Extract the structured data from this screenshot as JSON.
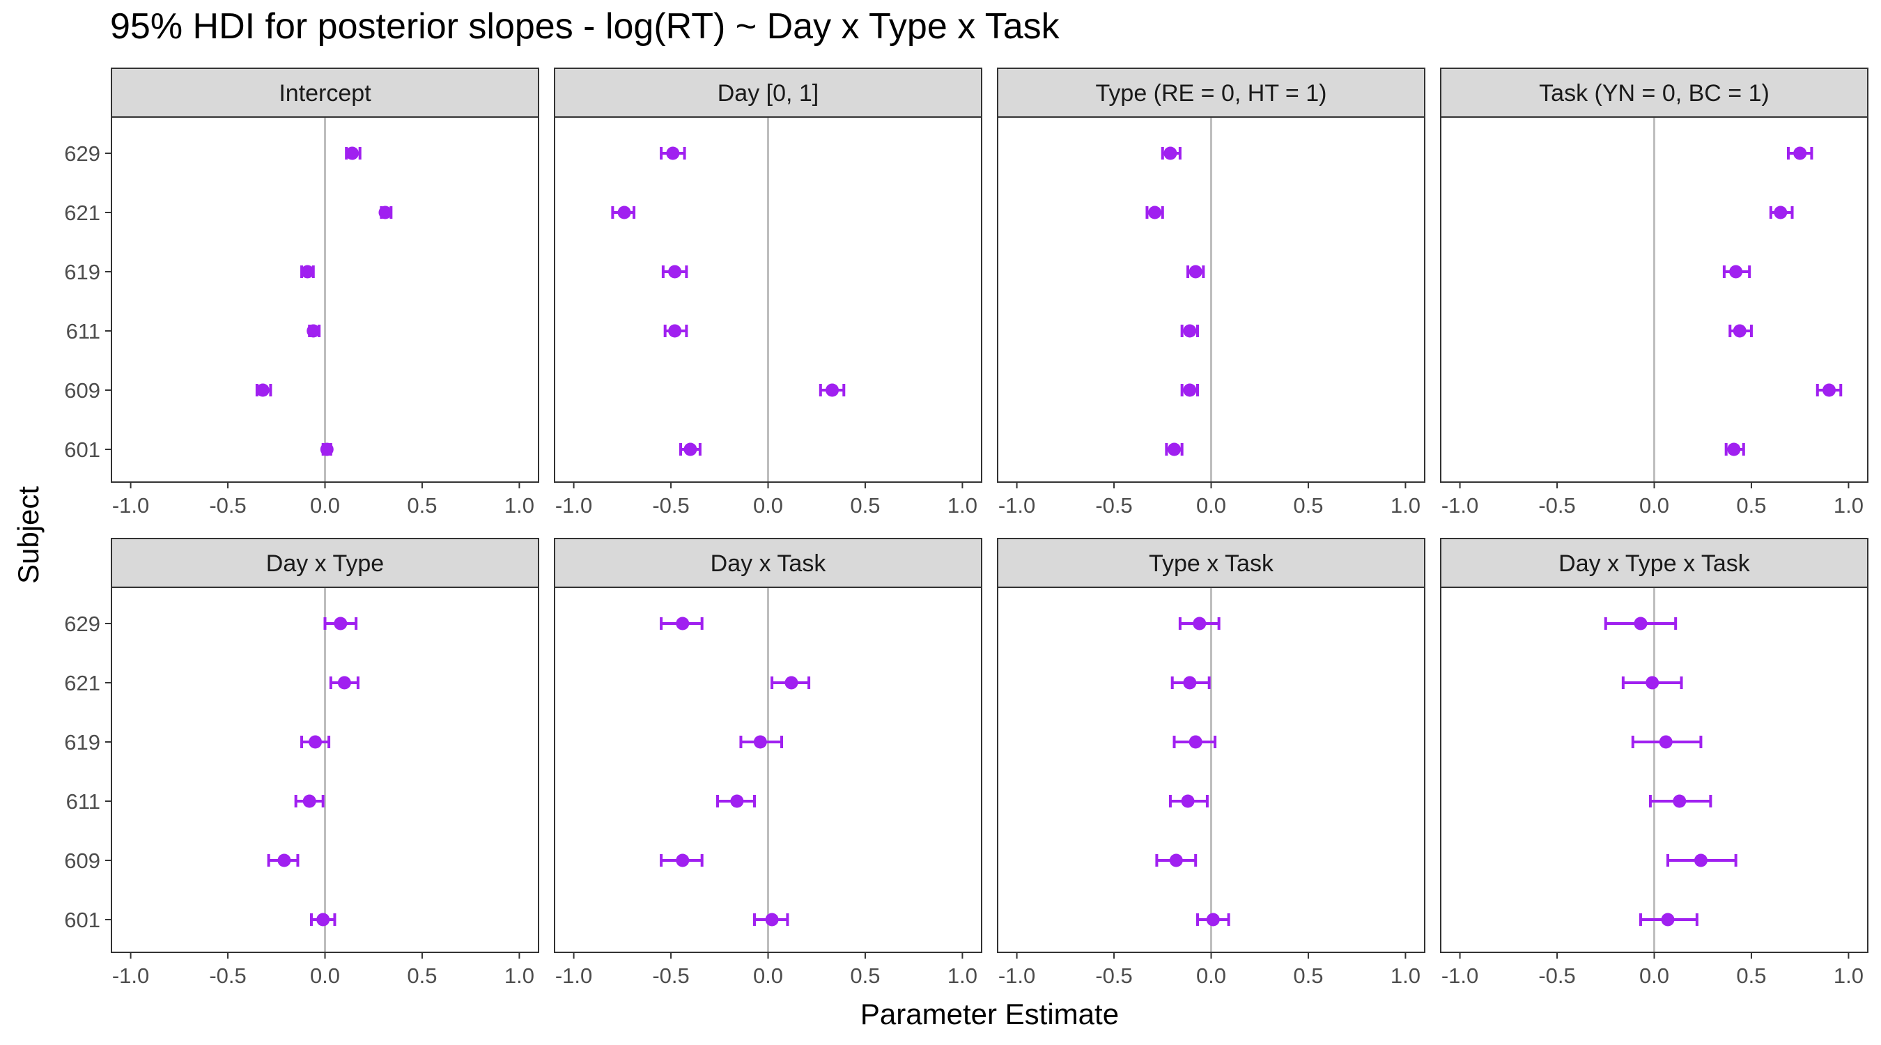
{
  "title": "95% HDI for posterior slopes - log(RT) ~ Day x Type x Task",
  "chart_data": {
    "type": "scatter",
    "title": "95% HDI for posterior slopes - log(RT) ~ Day x Type x Task",
    "xlabel": "Parameter Estimate",
    "ylabel": "Subject",
    "xlim": [
      -1.0,
      1.0
    ],
    "x_ticks": [
      "-1.0",
      "-0.5",
      "0.0",
      "0.5",
      "1.0"
    ],
    "x_tick_values": [
      -1.0,
      -0.5,
      0.0,
      0.5,
      1.0
    ],
    "subjects": [
      "629",
      "621",
      "619",
      "611",
      "609",
      "601"
    ],
    "reference_line": 0.0,
    "grid": false,
    "point_color": "#A020F0",
    "reference_color": "#BEBEBE",
    "strip_fill": "#D9D9D9",
    "facets": [
      {
        "name": "Intercept",
        "estimate": [
          0.14,
          0.31,
          -0.09,
          -0.06,
          -0.32,
          0.01
        ],
        "lower": [
          0.11,
          0.29,
          -0.12,
          -0.08,
          -0.35,
          -0.01
        ],
        "upper": [
          0.18,
          0.34,
          -0.06,
          -0.03,
          -0.28,
          0.03
        ]
      },
      {
        "name": "Day [0, 1]",
        "estimate": [
          -0.49,
          -0.74,
          -0.48,
          -0.48,
          0.33,
          -0.4
        ],
        "lower": [
          -0.55,
          -0.8,
          -0.54,
          -0.53,
          0.27,
          -0.45
        ],
        "upper": [
          -0.43,
          -0.69,
          -0.42,
          -0.42,
          0.39,
          -0.35
        ]
      },
      {
        "name": "Type (RE = 0, HT = 1)",
        "estimate": [
          -0.21,
          -0.29,
          -0.08,
          -0.11,
          -0.11,
          -0.19
        ],
        "lower": [
          -0.25,
          -0.33,
          -0.12,
          -0.15,
          -0.15,
          -0.23
        ],
        "upper": [
          -0.16,
          -0.25,
          -0.04,
          -0.07,
          -0.07,
          -0.15
        ]
      },
      {
        "name": "Task (YN = 0, BC = 1)",
        "estimate": [
          0.75,
          0.65,
          0.42,
          0.44,
          0.9,
          0.41
        ],
        "lower": [
          0.69,
          0.6,
          0.36,
          0.39,
          0.84,
          0.37
        ],
        "upper": [
          0.81,
          0.71,
          0.49,
          0.5,
          0.96,
          0.46
        ]
      },
      {
        "name": "Day x Type",
        "estimate": [
          0.08,
          0.1,
          -0.05,
          -0.08,
          -0.21,
          -0.01
        ],
        "lower": [
          0.0,
          0.03,
          -0.12,
          -0.15,
          -0.29,
          -0.07
        ],
        "upper": [
          0.16,
          0.17,
          0.02,
          -0.01,
          -0.14,
          0.05
        ]
      },
      {
        "name": "Day x Task",
        "estimate": [
          -0.44,
          0.12,
          -0.04,
          -0.16,
          -0.44,
          0.02
        ],
        "lower": [
          -0.55,
          0.02,
          -0.14,
          -0.26,
          -0.55,
          -0.07
        ],
        "upper": [
          -0.34,
          0.21,
          0.07,
          -0.07,
          -0.34,
          0.1
        ]
      },
      {
        "name": "Type x Task",
        "estimate": [
          -0.06,
          -0.11,
          -0.08,
          -0.12,
          -0.18,
          0.01
        ],
        "lower": [
          -0.16,
          -0.2,
          -0.19,
          -0.21,
          -0.28,
          -0.07
        ],
        "upper": [
          0.04,
          -0.01,
          0.02,
          -0.02,
          -0.08,
          0.09
        ]
      },
      {
        "name": "Day x Type x Task",
        "estimate": [
          -0.07,
          -0.01,
          0.06,
          0.13,
          0.24,
          0.07
        ],
        "lower": [
          -0.25,
          -0.16,
          -0.11,
          -0.02,
          0.07,
          -0.07
        ],
        "upper": [
          0.11,
          0.14,
          0.24,
          0.29,
          0.42,
          0.22
        ]
      }
    ]
  }
}
